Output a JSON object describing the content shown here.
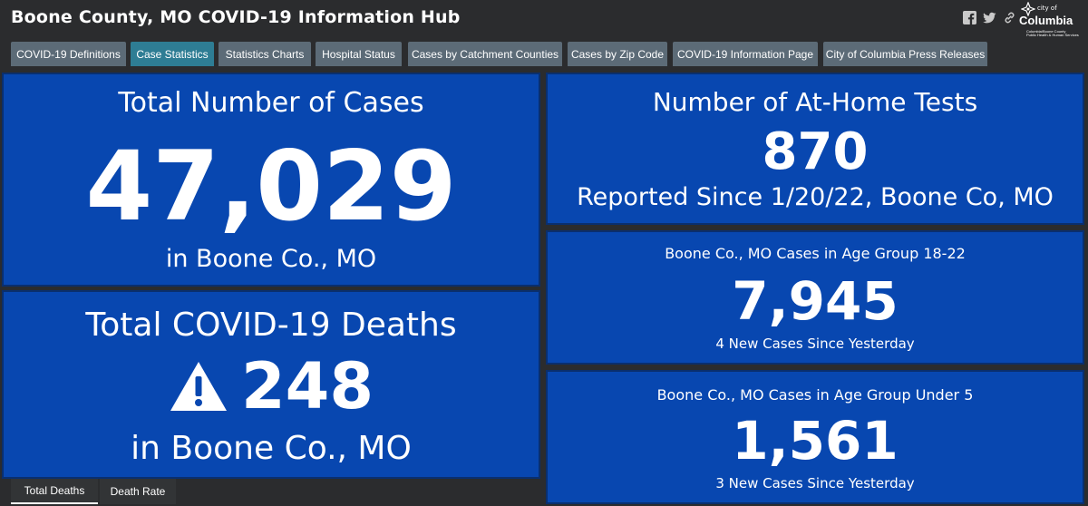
{
  "header": {
    "title": "Boone County, MO COVID-19 Information Hub",
    "logo": {
      "city_of": "city of",
      "name": "Columbia",
      "sub_line1": "Columbia/Boone County",
      "sub_line2": "Public Health & Human Services"
    },
    "icons": [
      "facebook-icon",
      "twitter-icon",
      "link-icon"
    ]
  },
  "tabs": [
    {
      "label": "COVID-19 Definitions",
      "active": false
    },
    {
      "label": "Case Statistics",
      "active": true
    },
    {
      "label": "Statistics Charts",
      "active": false
    },
    {
      "label": "Hospital Status",
      "active": false
    },
    {
      "label": "Cases by Catchment Counties",
      "active": false
    },
    {
      "label": "Cases by Zip Code",
      "active": false
    },
    {
      "label": "COVID-19 Information Page",
      "active": false
    },
    {
      "label": "City of Columbia Press Releases",
      "active": false
    }
  ],
  "total_cases": {
    "title": "Total Number of Cases",
    "value": "47,029",
    "caption": "in Boone Co., MO"
  },
  "deaths": {
    "title": "Total COVID-19 Deaths",
    "value": "248",
    "caption": "in Boone Co., MO",
    "icon": "warning-icon"
  },
  "home_tests": {
    "title": "Number of At-Home Tests",
    "value": "870",
    "caption": "Reported Since 1/20/22, Boone Co, MO"
  },
  "age_18_22": {
    "title": "Boone Co., MO Cases in Age Group 18-22",
    "value": "7,945",
    "caption": "4 New Cases Since Yesterday"
  },
  "age_under_5": {
    "title": "Boone Co., MO Cases in Age Group Under 5",
    "value": "1,561",
    "caption": "3 New Cases Since Yesterday"
  },
  "bottom_tabs": [
    {
      "label": "Total Deaths",
      "active": true
    },
    {
      "label": "Death Rate",
      "active": false
    }
  ],
  "colors": {
    "background": "#2b2c2e",
    "panel": "#0847b0",
    "tab": "#5c6b77",
    "tab_active": "#2e7d94"
  }
}
